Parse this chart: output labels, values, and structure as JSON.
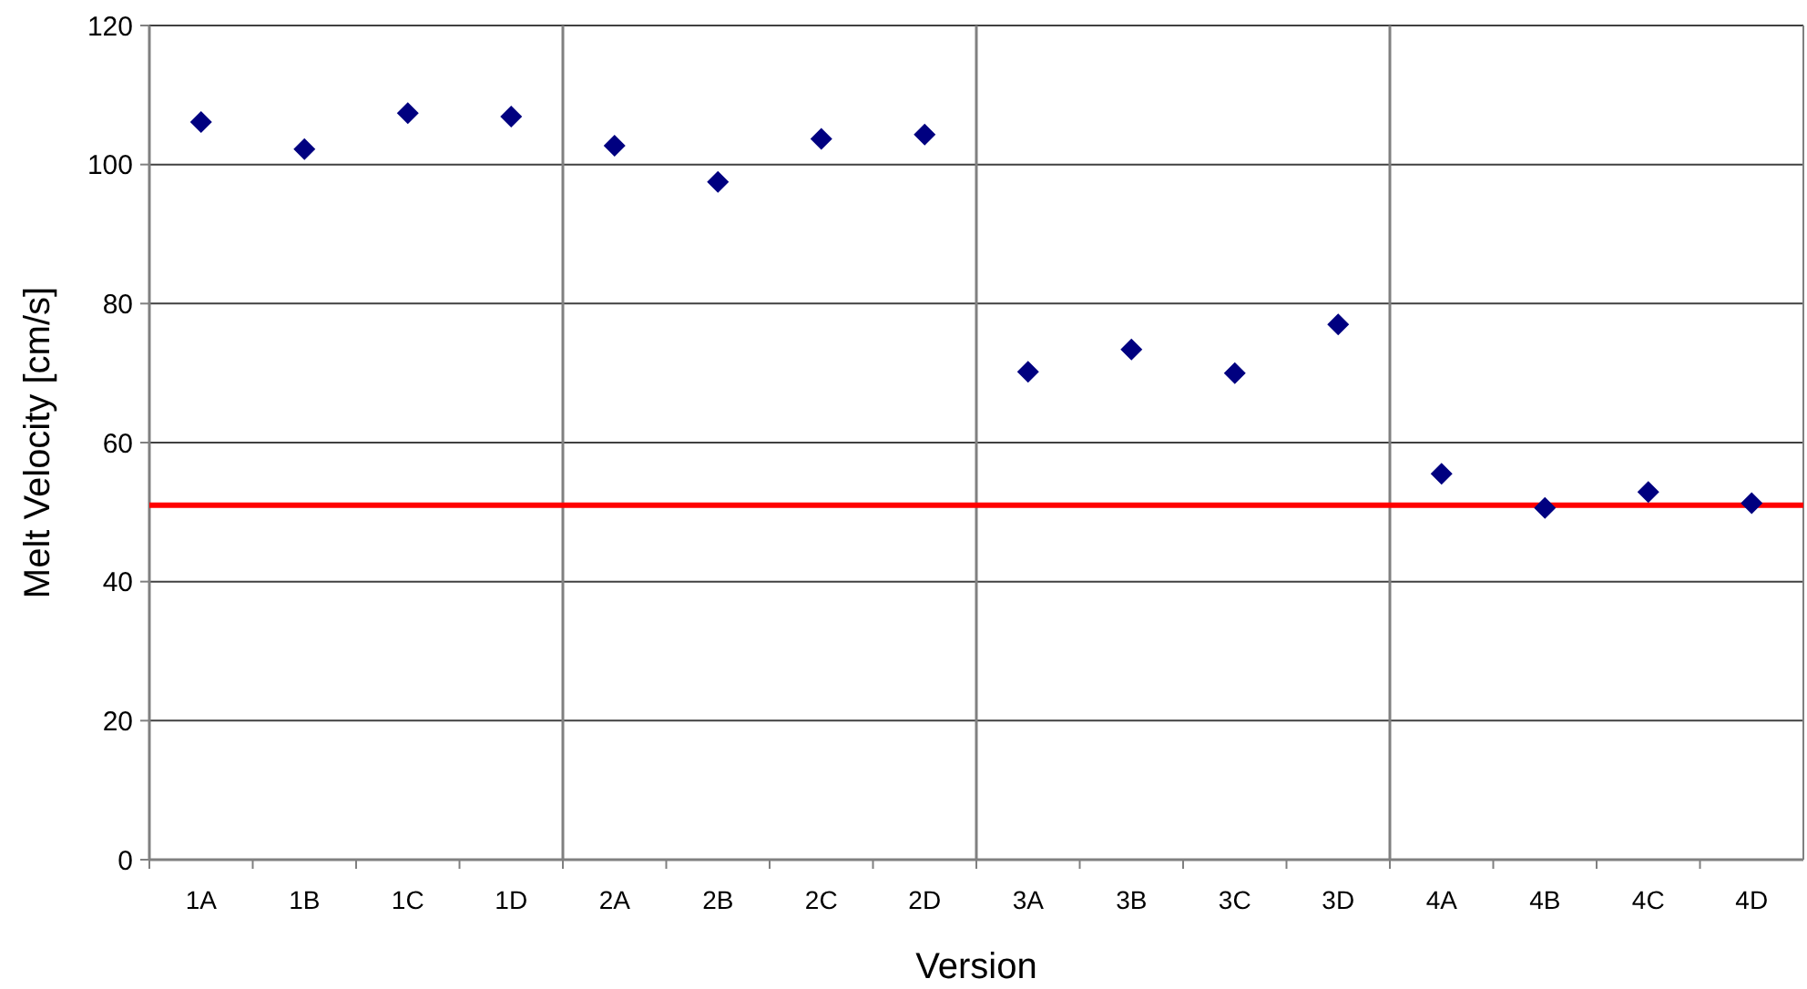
{
  "chart_data": {
    "type": "scatter",
    "xlabel": "Version",
    "ylabel": "Melt Velocity [cm/s]",
    "categories": [
      "1A",
      "1B",
      "1C",
      "1D",
      "2A",
      "2B",
      "2C",
      "2D",
      "3A",
      "3B",
      "3C",
      "3D",
      "4A",
      "4B",
      "4C",
      "4D"
    ],
    "values": [
      106.1,
      102.2,
      107.4,
      106.9,
      102.7,
      97.5,
      103.7,
      104.3,
      70.2,
      73.4,
      70,
      77,
      55.5,
      50.6,
      52.9,
      51.3
    ],
    "color": "#000080",
    "marker": "diamond",
    "ylim": [
      0,
      120
    ],
    "yticks": [
      0,
      20,
      40,
      60,
      80,
      100,
      120
    ],
    "grid": "y",
    "ref_lines": [
      {
        "axis": "y",
        "value": 51,
        "color": "#ff0000"
      }
    ]
  }
}
